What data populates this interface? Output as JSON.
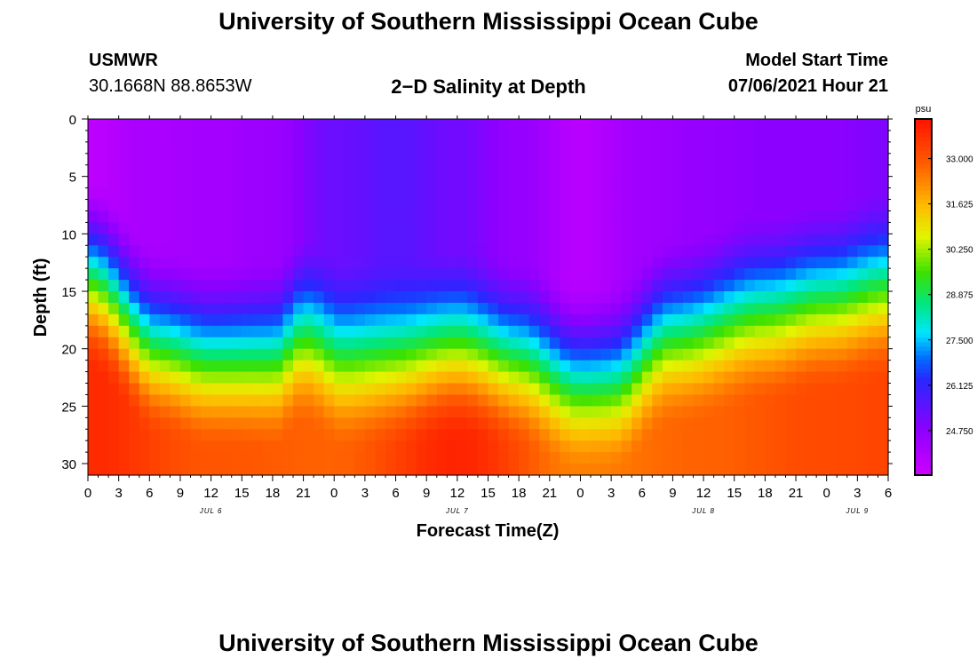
{
  "page": {
    "title_top": "University of Southern Mississippi Ocean Cube",
    "title_bottom": "University of Southern Mississippi Ocean Cube",
    "station": "USMWR",
    "coords": "30.1668N  88.8653W",
    "plot_title": "2−D Salinity at Depth",
    "model_start_label": "Model Start Time",
    "model_start_value": "07/06/2021 Hour 21"
  },
  "chart_data": {
    "type": "heatmap",
    "title": "2−D Salinity at Depth",
    "xlabel": "Forecast Time(Z)",
    "ylabel": "Depth (ft)",
    "ylim": [
      0,
      31
    ],
    "y_ticks": [
      "0",
      "5",
      "10",
      "15",
      "20",
      "25",
      "30"
    ],
    "x_tick_labels": [
      "0",
      "3",
      "6",
      "9",
      "12",
      "15",
      "18",
      "21",
      "0",
      "3",
      "6",
      "9",
      "12",
      "15",
      "18",
      "21",
      "0",
      "3",
      "6",
      "9",
      "12",
      "15",
      "18",
      "21",
      "0",
      "3",
      "6"
    ],
    "day_labels": [
      {
        "text": "JUL 6",
        "tick_index": 4
      },
      {
        "text": "JUL 7",
        "tick_index": 12
      },
      {
        "text": "JUL 8",
        "tick_index": 20
      },
      {
        "text": "JUL 9",
        "tick_index": 25
      }
    ],
    "x_range_hours": [
      0,
      78
    ],
    "colorbar": {
      "units": "psu",
      "range": [
        23.4,
        34.2
      ],
      "tick_labels": [
        "33.000",
        "31.625",
        "30.250",
        "28.875",
        "27.500",
        "26.125",
        "24.750"
      ],
      "tick_values": [
        33.0,
        31.625,
        30.25,
        28.875,
        27.5,
        26.125,
        24.75
      ]
    },
    "surface_salinity_psu": [
      {
        "hour": 0,
        "value": 23.8
      },
      {
        "hour": 6,
        "value": 24.2
      },
      {
        "hour": 12,
        "value": 24.3
      },
      {
        "hour": 18,
        "value": 24.5
      },
      {
        "hour": 24,
        "value": 25.3
      },
      {
        "hour": 30,
        "value": 25.6
      },
      {
        "hour": 36,
        "value": 25.2
      },
      {
        "hour": 42,
        "value": 24.6
      },
      {
        "hour": 48,
        "value": 23.9
      },
      {
        "hour": 54,
        "value": 24.4
      },
      {
        "hour": 60,
        "value": 24.6
      },
      {
        "hour": 66,
        "value": 24.8
      },
      {
        "hour": 72,
        "value": 24.8
      },
      {
        "hour": 78,
        "value": 25.0
      }
    ],
    "halocline_depth_ft": [
      {
        "hour": 0,
        "value": 9
      },
      {
        "hour": 7,
        "value": 15
      },
      {
        "hour": 12,
        "value": 16
      },
      {
        "hour": 18,
        "value": 16
      },
      {
        "hour": 21,
        "value": 14
      },
      {
        "hour": 25,
        "value": 16
      },
      {
        "hour": 30,
        "value": 16
      },
      {
        "hour": 36,
        "value": 15
      },
      {
        "hour": 42,
        "value": 16
      },
      {
        "hour": 48,
        "value": 18
      },
      {
        "hour": 51,
        "value": 18
      },
      {
        "hour": 57,
        "value": 14
      },
      {
        "hour": 66,
        "value": 12
      },
      {
        "hour": 72,
        "value": 11
      },
      {
        "hour": 78,
        "value": 10
      }
    ],
    "bottom_salinity_psu": [
      {
        "hour": 0,
        "value": 33.8
      },
      {
        "hour": 12,
        "value": 33.0
      },
      {
        "hour": 24,
        "value": 32.8
      },
      {
        "hour": 36,
        "value": 33.9
      },
      {
        "hour": 48,
        "value": 32.4
      },
      {
        "hour": 60,
        "value": 32.8
      },
      {
        "hour": 72,
        "value": 33.2
      },
      {
        "hour": 78,
        "value": 33.3
      }
    ]
  }
}
